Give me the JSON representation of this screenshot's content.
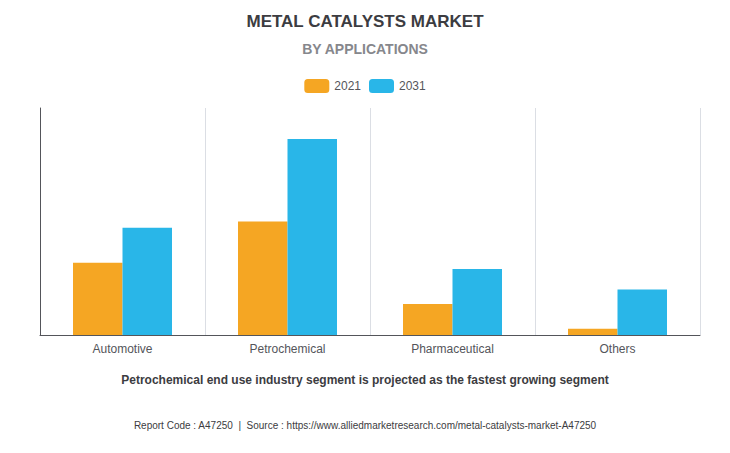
{
  "chart_data": {
    "type": "bar",
    "title": "METAL CATALYSTS MARKET",
    "subtitle": "BY APPLICATIONS",
    "categories": [
      "Automotive",
      "Petrochemical",
      "Pharmaceutical",
      "Others"
    ],
    "series": [
      {
        "name": "2021",
        "color": "#F5A623",
        "values": [
          3.5,
          5.5,
          1.5,
          0.3
        ]
      },
      {
        "name": "2031",
        "color": "#29B6E8",
        "values": [
          5.2,
          9.5,
          3.2,
          2.2
        ]
      }
    ],
    "ylim": [
      0,
      11
    ],
    "grid": true,
    "legend": "top",
    "tick_labels": "x",
    "annotations": [
      "Petrochemical end use industry segment is projected as the fastest growing segment",
      "Report Code : A47250  |  Source : https://www.alliedmarketresearch.com/metal-catalysts-market-A47250"
    ]
  }
}
